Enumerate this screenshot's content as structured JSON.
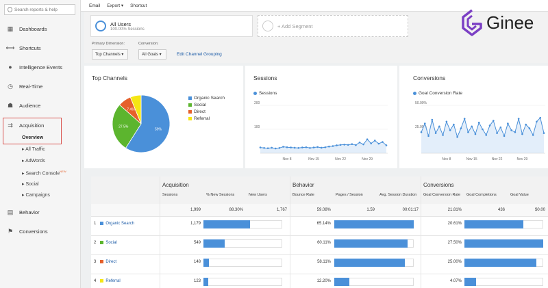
{
  "search": {
    "placeholder": "Search reports & help"
  },
  "sidebar": {
    "items": [
      {
        "label": "Dashboards"
      },
      {
        "label": "Shortcuts"
      },
      {
        "label": "Intelligence Events"
      },
      {
        "label": "Real-Time"
      },
      {
        "label": "Audience"
      },
      {
        "label": "Acquisition"
      },
      {
        "label": "Behavior"
      },
      {
        "label": "Conversions"
      }
    ],
    "overview": "Overview",
    "sub_items": [
      {
        "label": "All Traffic"
      },
      {
        "label": "AdWords"
      },
      {
        "label": "Search Console"
      },
      {
        "label": "Social"
      },
      {
        "label": "Campaigns"
      }
    ],
    "new_badge": "NEW"
  },
  "topbar": {
    "email": "Email",
    "export": "Export",
    "shortcut": "Shortcut"
  },
  "segments": {
    "all_users": "All Users",
    "all_users_sub": "100.00% Sessions",
    "add": "+ Add Segment"
  },
  "controls": {
    "primary_label": "Primary Dimension:",
    "primary_value": "Top Channels",
    "conversion_label": "Conversion:",
    "conversion_value": "All Goals",
    "edit_link": "Edit Channel Grouping"
  },
  "logo": {
    "text": "Ginee"
  },
  "colors": {
    "blue": "#4a90d9",
    "green": "#5cb52e",
    "orange": "#e5602b",
    "yellow": "#f5e614",
    "link": "#1a5aa6"
  },
  "chart_data": [
    {
      "type": "pie",
      "title": "Top Channels",
      "categories": [
        "Organic Search",
        "Social",
        "Direct",
        "Referral"
      ],
      "values": [
        59,
        27.5,
        7.4,
        6.1
      ],
      "labels": [
        "59%",
        "27.5%",
        "7.4%",
        ""
      ],
      "legend": "right"
    },
    {
      "type": "line",
      "title": "Sessions",
      "series": [
        {
          "name": "Sessions",
          "values": [
            24,
            22,
            21,
            23,
            20,
            22,
            27,
            25,
            24,
            23,
            22,
            24,
            25,
            22,
            24,
            26,
            23,
            25,
            28,
            30,
            33,
            35,
            36,
            35,
            38,
            34,
            45,
            37,
            58,
            41,
            53,
            40,
            47,
            33
          ]
        }
      ],
      "yticks": [
        "200",
        "100"
      ],
      "ylim": [
        0,
        200
      ],
      "xticks": [
        "Nov 8",
        "Nov 15",
        "Nov 22",
        "Nov 29"
      ]
    },
    {
      "type": "line",
      "title": "Conversions",
      "series": [
        {
          "name": "Goal Conversion Rate",
          "values": [
            22,
            31,
            18,
            35,
            21,
            28,
            19,
            33,
            24,
            30,
            17,
            26,
            36,
            22,
            28,
            20,
            32,
            25,
            19,
            29,
            34,
            21,
            27,
            18,
            31,
            24,
            22,
            36,
            20,
            30,
            26,
            19,
            33,
            37,
            21
          ]
        }
      ],
      "yticks": [
        "50.00%",
        "25.00%"
      ],
      "ylim": [
        0,
        50
      ],
      "xticks": [
        "Nov 8",
        "Nov 15",
        "Nov 22",
        "Nov 29"
      ]
    }
  ],
  "table": {
    "groups": [
      "Acquisition",
      "Behavior",
      "Conversions"
    ],
    "columns": [
      "Sessions",
      "% New Sessions",
      "New Users",
      "Bounce Rate",
      "Pages / Session",
      "Avg. Session Duration",
      "Goal Conversion Rate",
      "Goal Completions",
      "Goal Value"
    ],
    "totals": [
      "1,999",
      "88.30%",
      "1,767",
      "59.08%",
      "1.59",
      "00:01:17",
      "21.81%",
      "436",
      "$0.00"
    ],
    "rows": [
      {
        "num": "1",
        "name": "Organic Search",
        "sessions": "1,179",
        "bounce": "65.14%",
        "conv": "20.61%",
        "sessions_share": 0.59,
        "bounce_share": 1.0,
        "conv_share": 0.75
      },
      {
        "num": "2",
        "name": "Social",
        "sessions": "549",
        "bounce": "60.11%",
        "conv": "27.50%",
        "sessions_share": 0.27,
        "bounce_share": 0.92,
        "conv_share": 1.0
      },
      {
        "num": "3",
        "name": "Direct",
        "sessions": "148",
        "bounce": "58.11%",
        "conv": "25.00%",
        "sessions_share": 0.07,
        "bounce_share": 0.89,
        "conv_share": 0.91
      },
      {
        "num": "4",
        "name": "Referral",
        "sessions": "123",
        "bounce": "12.20%",
        "conv": "4.07%",
        "sessions_share": 0.06,
        "bounce_share": 0.19,
        "conv_share": 0.15
      }
    ]
  }
}
